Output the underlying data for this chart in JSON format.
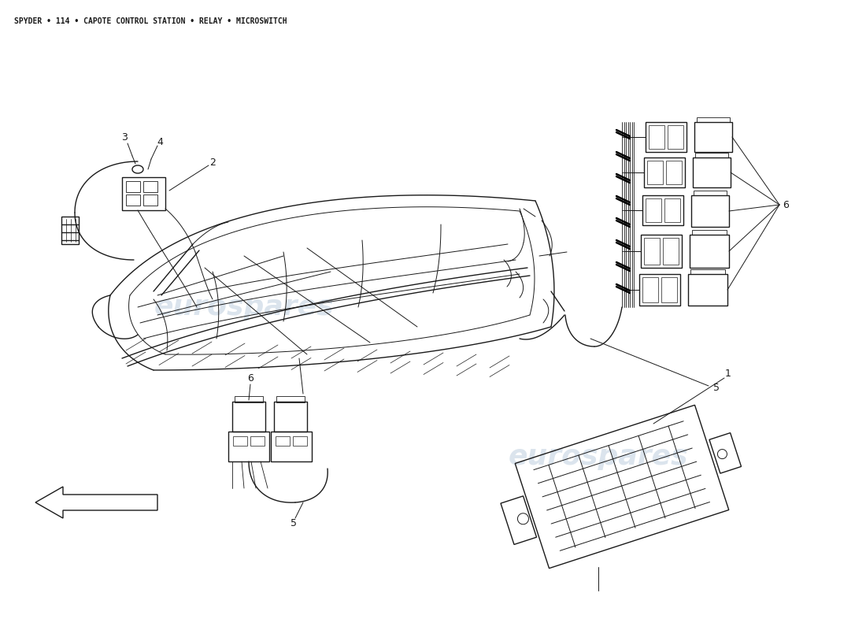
{
  "title": "SPYDER • 114 • CAPOTE CONTROL STATION • RELAY • MICROSWITCH",
  "title_fontsize": 7,
  "bg_color": "#ffffff",
  "watermark_text": "eurospares",
  "watermark_color": "#b0c4d8",
  "line_color": "#1a1a1a",
  "label_fontsize": 9
}
